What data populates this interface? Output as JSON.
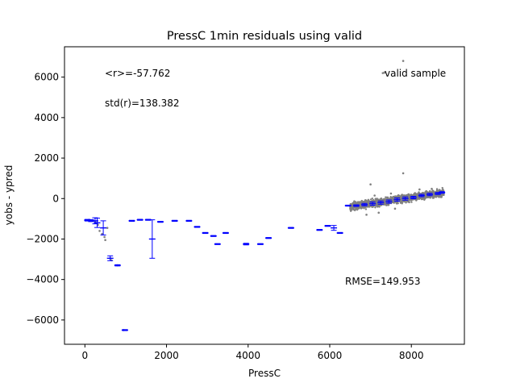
{
  "chart_data": {
    "type": "scatter",
    "title": "PressC 1min residuals using valid",
    "xlabel": "PressC",
    "ylabel": "yobs - ypred",
    "xlim": [
      -500,
      9300
    ],
    "ylim": [
      -7200,
      7500
    ],
    "x_ticks": [
      0,
      2000,
      4000,
      6000,
      8000
    ],
    "y_ticks": [
      -6000,
      -4000,
      -2000,
      0,
      2000,
      4000,
      6000
    ],
    "grid": false,
    "legend": {
      "position": "top-right",
      "label": "valid sample"
    },
    "annotations": {
      "mean": "<r>=-57.762",
      "std": "std(r)=138.382",
      "rmse": "RMSE=149.953"
    },
    "colors": {
      "points": "#808080",
      "errorbars": "#0000ff"
    },
    "scatter_points": [
      {
        "x": 100,
        "y": -1050
      },
      {
        "x": 150,
        "y": -1100
      },
      {
        "x": 200,
        "y": -1080
      },
      {
        "x": 250,
        "y": -1150
      },
      {
        "x": 300,
        "y": -1200
      },
      {
        "x": 320,
        "y": -1300
      },
      {
        "x": 360,
        "y": -1600
      },
      {
        "x": 420,
        "y": -1750
      },
      {
        "x": 480,
        "y": -1900
      },
      {
        "x": 500,
        "y": -2050
      },
      {
        "x": 550,
        "y": -1450
      },
      {
        "x": 620,
        "y": -2950
      },
      {
        "x": 650,
        "y": -3050
      },
      {
        "x": 800,
        "y": -3300
      },
      {
        "x": 950,
        "y": -6500
      },
      {
        "x": 7000,
        "y": 700
      },
      {
        "x": 7300,
        "y": 6200
      },
      {
        "x": 7800,
        "y": 6800
      },
      {
        "x": 7800,
        "y": 1250
      },
      {
        "x": 7100,
        "y": 150
      },
      {
        "x": 7500,
        "y": 250
      },
      {
        "x": 8200,
        "y": 450
      },
      {
        "x": 8500,
        "y": 480
      },
      {
        "x": 6900,
        "y": -800
      },
      {
        "x": 7200,
        "y": -700
      },
      {
        "x": 7600,
        "y": -500
      }
    ],
    "dense_band": {
      "x_start": 6500,
      "x_end": 8800,
      "y_start": -400,
      "y_end": 300,
      "spread": 180
    },
    "binned_means": [
      {
        "x": 60,
        "y": -1070,
        "err": 40
      },
      {
        "x": 150,
        "y": -1090,
        "err": 50
      },
      {
        "x": 250,
        "y": -1100,
        "err": 150
      },
      {
        "x": 300,
        "y": -1200,
        "err": 230
      },
      {
        "x": 450,
        "y": -1450,
        "err": 350
      },
      {
        "x": 620,
        "y": -2950,
        "err": 120
      },
      {
        "x": 800,
        "y": -3300,
        "err": 30
      },
      {
        "x": 980,
        "y": -6500,
        "err": 25
      },
      {
        "x": 1150,
        "y": -1100,
        "err": 25
      },
      {
        "x": 1350,
        "y": -1050,
        "err": 25
      },
      {
        "x": 1550,
        "y": -1050,
        "err": 25
      },
      {
        "x": 1650,
        "y": -2000,
        "err": 950
      },
      {
        "x": 1850,
        "y": -1150,
        "err": 25
      },
      {
        "x": 2200,
        "y": -1100,
        "err": 25
      },
      {
        "x": 2550,
        "y": -1100,
        "err": 25
      },
      {
        "x": 2750,
        "y": -1400,
        "err": 25
      },
      {
        "x": 2950,
        "y": -1700,
        "err": 25
      },
      {
        "x": 3150,
        "y": -1850,
        "err": 25
      },
      {
        "x": 3250,
        "y": -2250,
        "err": 25
      },
      {
        "x": 3450,
        "y": -1700,
        "err": 25
      },
      {
        "x": 3950,
        "y": -2250,
        "err": 40
      },
      {
        "x": 4300,
        "y": -2250,
        "err": 25
      },
      {
        "x": 4500,
        "y": -1950,
        "err": 25
      },
      {
        "x": 5050,
        "y": -1450,
        "err": 25
      },
      {
        "x": 5750,
        "y": -1550,
        "err": 25
      },
      {
        "x": 5950,
        "y": -1350,
        "err": 25
      },
      {
        "x": 6100,
        "y": -1450,
        "err": 120
      },
      {
        "x": 6250,
        "y": -1700,
        "err": 25
      },
      {
        "x": 6450,
        "y": -350,
        "err": 25
      },
      {
        "x": 6650,
        "y": -350,
        "err": 40
      },
      {
        "x": 6850,
        "y": -300,
        "err": 60
      },
      {
        "x": 7050,
        "y": -250,
        "err": 80
      },
      {
        "x": 7250,
        "y": -200,
        "err": 80
      },
      {
        "x": 7450,
        "y": -150,
        "err": 80
      },
      {
        "x": 7650,
        "y": -50,
        "err": 80
      },
      {
        "x": 7850,
        "y": 0,
        "err": 80
      },
      {
        "x": 8050,
        "y": 50,
        "err": 60
      },
      {
        "x": 8250,
        "y": 150,
        "err": 60
      },
      {
        "x": 8450,
        "y": 200,
        "err": 60
      },
      {
        "x": 8650,
        "y": 250,
        "err": 50
      },
      {
        "x": 8750,
        "y": 300,
        "err": 40
      }
    ]
  }
}
